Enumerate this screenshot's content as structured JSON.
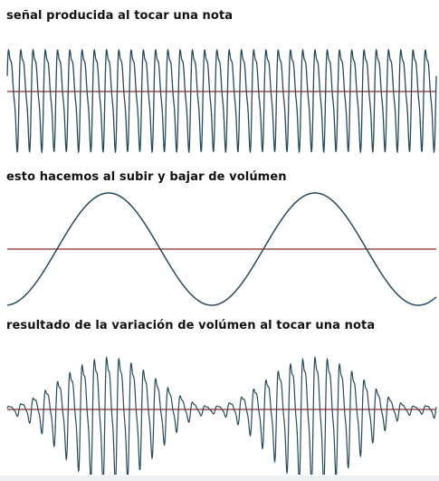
{
  "panels": [
    {
      "title": "señal producida al tocar una nota"
    },
    {
      "title": "esto hacemos al subir y bajar de volúmen"
    },
    {
      "title": "resultado de la variación de volúmen al tocar una nota"
    }
  ],
  "colors": {
    "waveform": "#274a5c",
    "baseline": "#8c2b2b",
    "text": "#111111"
  }
}
